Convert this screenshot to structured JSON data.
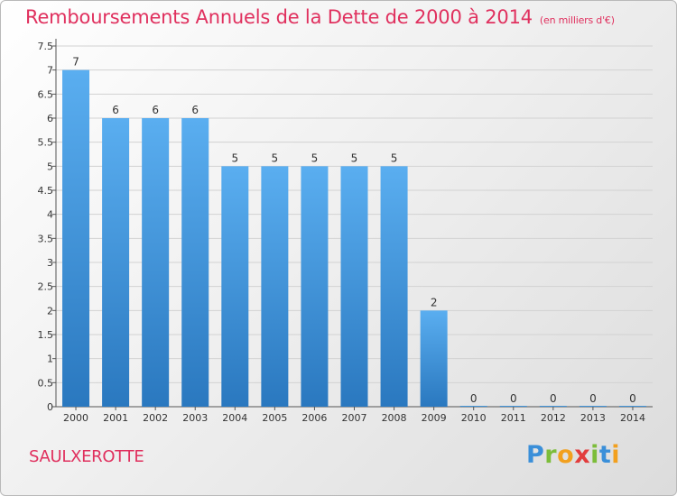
{
  "chart_data": {
    "type": "bar",
    "title": "Remboursements Annuels de la Dette de 2000 à 2014",
    "unit_note": "(en milliers d'€)",
    "categories": [
      "2000",
      "2001",
      "2002",
      "2003",
      "2004",
      "2005",
      "2006",
      "2007",
      "2008",
      "2009",
      "2010",
      "2011",
      "2012",
      "2013",
      "2014"
    ],
    "values": [
      7,
      6,
      6,
      6,
      5,
      5,
      5,
      5,
      5,
      2,
      0,
      0,
      0,
      0,
      0
    ],
    "data_labels": [
      "7",
      "6",
      "6",
      "6",
      "5",
      "5",
      "5",
      "5",
      "5",
      "2",
      "0",
      "0",
      "0",
      "0",
      "0"
    ],
    "yticks": [
      "0",
      "0.5",
      "1",
      "1.5",
      "2",
      "2.5",
      "3",
      "3.5",
      "4",
      "4.5",
      "5",
      "5.5",
      "6",
      "6.5",
      "7",
      "7.5"
    ],
    "ylim": [
      0,
      7.5
    ],
    "grid": true,
    "bar_color": "#3a92d8"
  },
  "place_name": "SAULXEROTTE",
  "brand": {
    "letters": [
      "P",
      "r",
      "o",
      "x",
      "i",
      "t",
      "i"
    ],
    "colors": [
      "#3a8fd9",
      "#7cbd3a",
      "#f2a01e",
      "#e23c3c",
      "#7cbd3a",
      "#3a8fd9",
      "#f2a01e"
    ]
  }
}
